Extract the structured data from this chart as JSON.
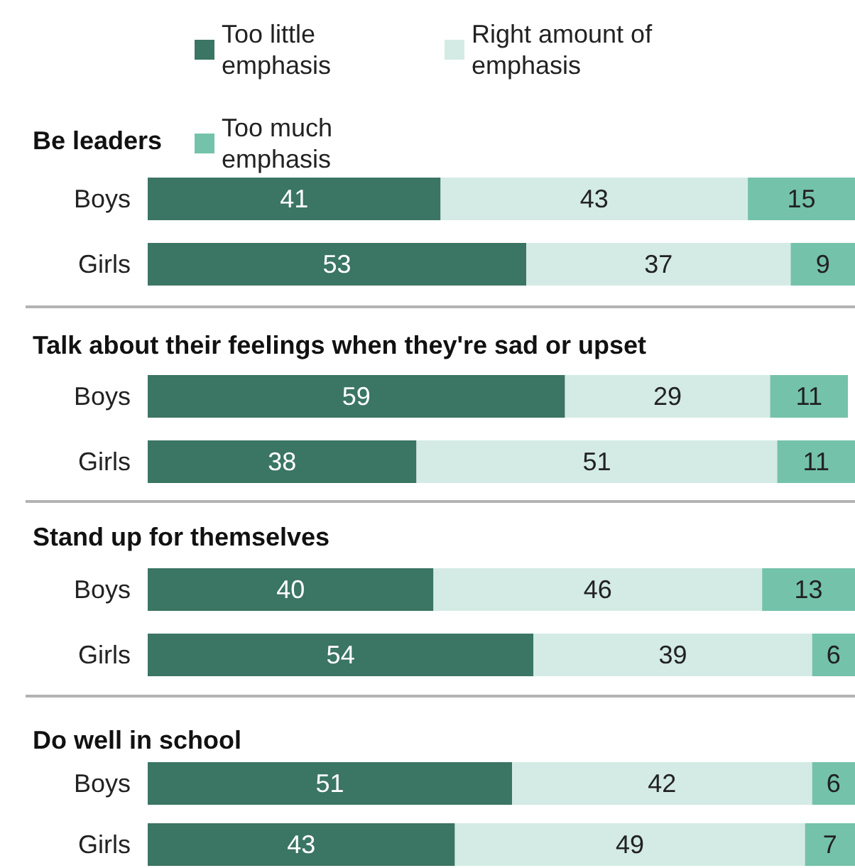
{
  "chart_data": [
    {
      "type": "bar",
      "orientation": "horizontal",
      "stacked": true,
      "data_labels": true,
      "tick_labels": "y",
      "legend": "top",
      "title": "Be leaders",
      "categories": [
        "Boys",
        "Girls"
      ],
      "series": [
        {
          "name": "Too little emphasis",
          "color": "#3b7563",
          "values": [
            41,
            53
          ]
        },
        {
          "name": "Right amount of emphasis",
          "color": "#d3ebe4",
          "values": [
            43,
            37
          ]
        },
        {
          "name": "Too much emphasis",
          "color": "#74c2aa",
          "values": [
            15,
            9
          ]
        }
      ]
    },
    {
      "type": "bar",
      "orientation": "horizontal",
      "stacked": true,
      "data_labels": true,
      "tick_labels": "y",
      "title": "Talk about their feelings when they're sad or upset",
      "categories": [
        "Boys",
        "Girls"
      ],
      "series": [
        {
          "color": "#3b7563",
          "values": [
            59,
            38
          ]
        },
        {
          "color": "#d3ebe4",
          "values": [
            29,
            51
          ]
        },
        {
          "color": "#74c2aa",
          "values": [
            11,
            11
          ]
        }
      ]
    },
    {
      "type": "bar",
      "orientation": "horizontal",
      "stacked": true,
      "data_labels": true,
      "tick_labels": "y",
      "title": "Stand up for themselves",
      "categories": [
        "Boys",
        "Girls"
      ],
      "series": [
        {
          "color": "#3b7563",
          "values": [
            40,
            54
          ]
        },
        {
          "color": "#d3ebe4",
          "values": [
            46,
            39
          ]
        },
        {
          "color": "#74c2aa",
          "values": [
            13,
            6
          ]
        }
      ]
    },
    {
      "type": "bar",
      "orientation": "horizontal",
      "stacked": true,
      "data_labels": true,
      "tick_labels": "y",
      "title": "Do well in school",
      "categories": [
        "Boys",
        "Girls"
      ],
      "series": [
        {
          "color": "#3b7563",
          "values": [
            51,
            43
          ]
        },
        {
          "color": "#d3ebe4",
          "values": [
            42,
            49
          ]
        },
        {
          "color": "#74c2aa",
          "values": [
            6,
            7
          ]
        }
      ]
    }
  ]
}
